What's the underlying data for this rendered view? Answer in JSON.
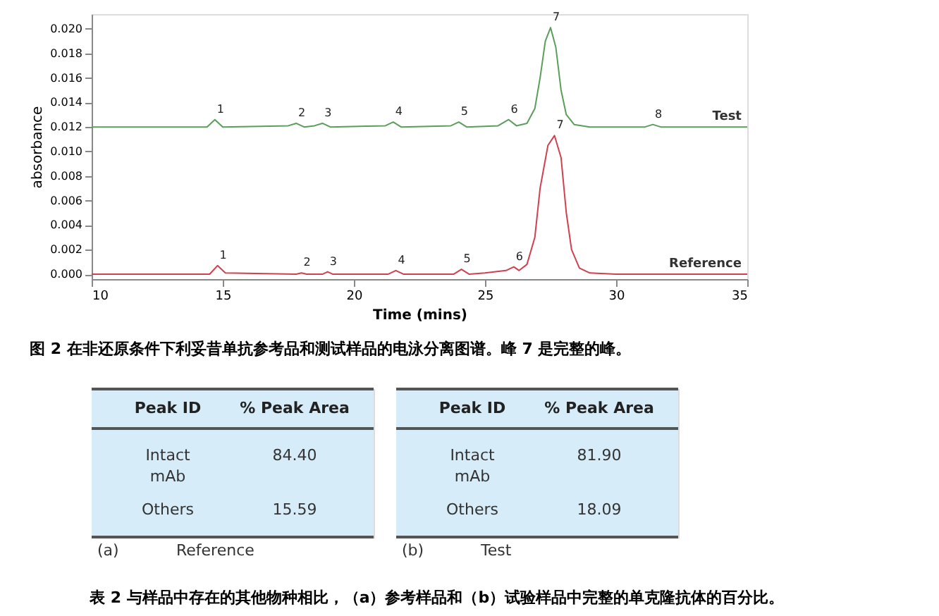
{
  "chart_data": [
    {
      "type": "line",
      "xlabel": "Time (mins)",
      "ylabel": "absorbance",
      "xlim": [
        10,
        35
      ],
      "xticks": [
        10,
        15,
        20,
        25,
        30,
        35
      ],
      "ylim": [
        -0.0004,
        0.0212
      ],
      "yticks": [
        {
          "value": 0,
          "label": "0.000"
        },
        {
          "value": 0.002,
          "label": "0.002"
        },
        {
          "value": 0.004,
          "label": "0.004"
        },
        {
          "value": 0.006,
          "label": "0.006"
        },
        {
          "value": 0.008,
          "label": "0.008"
        },
        {
          "value": 0.01,
          "label": "0.010"
        },
        {
          "value": 0.012,
          "label": "0.012"
        },
        {
          "value": 0.014,
          "label": "0.014"
        },
        {
          "value": 0.016,
          "label": "0.016"
        },
        {
          "value": 0.018,
          "label": "0.018"
        },
        {
          "value": 0.02,
          "label": "0.020"
        }
      ],
      "grid": false,
      "legend": false,
      "marker": "none",
      "line_style": "solid",
      "series": [
        {
          "name": "Test",
          "color": "#5a9e5a",
          "x": [
            10,
            14.4,
            14.7,
            15.0,
            17.5,
            17.8,
            18.1,
            18.5,
            18.8,
            19.1,
            21.2,
            21.5,
            21.8,
            23.7,
            24.0,
            24.3,
            25.5,
            25.9,
            26.2,
            26.6,
            26.9,
            27.1,
            27.3,
            27.5,
            27.7,
            27.9,
            28.1,
            28.4,
            29,
            31.1,
            31.4,
            31.7,
            35
          ],
          "values": [
            0.012,
            0.012,
            0.0126,
            0.012,
            0.0121,
            0.0123,
            0.012,
            0.0121,
            0.0123,
            0.012,
            0.0121,
            0.0124,
            0.012,
            0.0121,
            0.0124,
            0.012,
            0.0121,
            0.0126,
            0.0121,
            0.0123,
            0.0135,
            0.016,
            0.019,
            0.0201,
            0.0185,
            0.015,
            0.013,
            0.0122,
            0.012,
            0.012,
            0.0122,
            0.012,
            0.012
          ]
        },
        {
          "name": "Reference",
          "color": "#d0404f",
          "x": [
            10,
            14.5,
            14.8,
            15.1,
            17.8,
            18.0,
            18.2,
            18.8,
            19.0,
            19.2,
            21.3,
            21.6,
            21.9,
            23.8,
            24.1,
            24.4,
            25.0,
            25.8,
            26.1,
            26.3,
            26.6,
            26.9,
            27.1,
            27.4,
            27.65,
            27.9,
            28.1,
            28.3,
            28.6,
            29,
            30,
            35
          ],
          "values": [
            0,
            0,
            0.0007,
            0.0001,
            0,
            0.0001,
            0,
            0,
            0.0002,
            0,
            0,
            0.0003,
            0,
            0,
            0.0004,
            0,
            0.0001,
            0.0003,
            0.0006,
            0.0003,
            0.0008,
            0.003,
            0.007,
            0.0105,
            0.0113,
            0.0095,
            0.005,
            0.002,
            0.0005,
            0.0001,
            0,
            0
          ]
        }
      ],
      "annotations": [
        {
          "text": "1",
          "x": 14.7,
          "y": 0.0126
        },
        {
          "text": "2",
          "x": 17.8,
          "y": 0.0123
        },
        {
          "text": "3",
          "x": 18.8,
          "y": 0.0123
        },
        {
          "text": "4",
          "x": 21.5,
          "y": 0.0124
        },
        {
          "text": "5",
          "x": 24.0,
          "y": 0.0124
        },
        {
          "text": "6",
          "x": 25.9,
          "y": 0.0126
        },
        {
          "text": "7",
          "x": 27.5,
          "y": 0.0201
        },
        {
          "text": "8",
          "x": 31.4,
          "y": 0.0122
        },
        {
          "text": "1",
          "x": 14.8,
          "y": 0.0007
        },
        {
          "text": "2",
          "x": 18.0,
          "y": 0.0001
        },
        {
          "text": "3",
          "x": 19.0,
          "y": 0.0002
        },
        {
          "text": "4",
          "x": 21.6,
          "y": 0.0003
        },
        {
          "text": "5",
          "x": 24.1,
          "y": 0.0004
        },
        {
          "text": "6",
          "x": 26.1,
          "y": 0.0006
        },
        {
          "text": "7",
          "x": 27.65,
          "y": 0.0113
        },
        "图 2  在非还原条件下利妥昔单抗参考品和测试样品的电泳分离图谱。峰 7 是完整的峰。"
      ]
    },
    {
      "type": "other",
      "subtitle": "(a)",
      "title": "Reference",
      "xlabel": "Peak ID",
      "ylabel": "% Peak Area",
      "categories": [
        "Intact mAb",
        "Others"
      ],
      "value_labels": [
        "84.40",
        "15.59"
      ],
      "color": "#d6ecf8"
    },
    {
      "type": "other",
      "subtitle": "(b)",
      "title": "Test",
      "xlabel": "Peak ID",
      "ylabel": "% Peak Area",
      "categories": [
        "Intact mAb",
        "Others"
      ],
      "value_labels": [
        "81.90",
        "18.09"
      ],
      "color": "#d6ecf8",
      "annotations": [
        "表 2  与样品中存在的其他物种相比，（a）参考样品和（b）试验样品中完整的单克隆抗体的百分比。"
      ]
    }
  ]
}
